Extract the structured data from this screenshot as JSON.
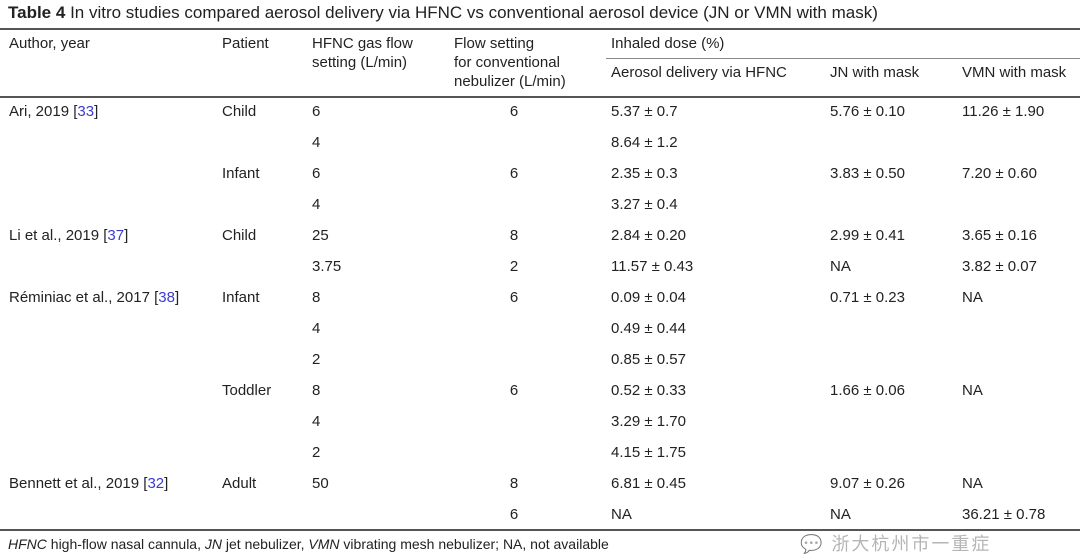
{
  "table": {
    "label": "Table 4",
    "caption": "In vitro studies compared aerosol delivery via HFNC vs conventional aerosol device (JN or VMN with mask)",
    "headers": {
      "author": "Author, year",
      "patient": "Patient",
      "hfnc_flow": [
        "HFNC gas flow",
        "setting (L/min)"
      ],
      "conv_flow": [
        "Flow setting",
        "for conventional",
        "nebulizer (L/min)"
      ],
      "inhaled_dose": "Inhaled dose (%)",
      "sub": [
        "Aerosol delivery via HFNC",
        "JN with mask",
        "VMN with mask"
      ]
    },
    "rows": [
      {
        "author": "Ari, 2019",
        "ref": "33",
        "patient": "Child",
        "hfnc": "6",
        "conv": "6",
        "via_hfnc": "5.37 ± 0.7",
        "jn": "5.76 ± 0.10",
        "vmn": "11.26 ± 1.90"
      },
      {
        "author": "",
        "ref": "",
        "patient": "",
        "hfnc": "4",
        "conv": "",
        "via_hfnc": "8.64 ± 1.2",
        "jn": "",
        "vmn": ""
      },
      {
        "author": "",
        "ref": "",
        "patient": "Infant",
        "hfnc": "6",
        "conv": "6",
        "via_hfnc": "2.35 ± 0.3",
        "jn": "3.83 ± 0.50",
        "vmn": "7.20 ± 0.60"
      },
      {
        "author": "",
        "ref": "",
        "patient": "",
        "hfnc": "4",
        "conv": "",
        "via_hfnc": "3.27 ± 0.4",
        "jn": "",
        "vmn": ""
      },
      {
        "author": "Li et al., 2019",
        "ref": "37",
        "patient": "Child",
        "hfnc": "25",
        "conv": "8",
        "via_hfnc": "2.84 ± 0.20",
        "jn": "2.99 ± 0.41",
        "vmn": "3.65 ± 0.16"
      },
      {
        "author": "",
        "ref": "",
        "patient": "",
        "hfnc": "3.75",
        "conv": "2",
        "via_hfnc": "11.57 ± 0.43",
        "jn": "NA",
        "vmn": "3.82 ± 0.07"
      },
      {
        "author": "Réminiac et al., 2017",
        "ref": "38",
        "patient": "Infant",
        "hfnc": "8",
        "conv": "6",
        "via_hfnc": "0.09 ± 0.04",
        "jn": "0.71 ± 0.23",
        "vmn": "NA"
      },
      {
        "author": "",
        "ref": "",
        "patient": "",
        "hfnc": "4",
        "conv": "",
        "via_hfnc": "0.49 ± 0.44",
        "jn": "",
        "vmn": ""
      },
      {
        "author": "",
        "ref": "",
        "patient": "",
        "hfnc": "2",
        "conv": "",
        "via_hfnc": "0.85 ± 0.57",
        "jn": "",
        "vmn": ""
      },
      {
        "author": "",
        "ref": "",
        "patient": "Toddler",
        "hfnc": "8",
        "conv": "6",
        "via_hfnc": "0.52 ± 0.33",
        "jn": "1.66 ± 0.06",
        "vmn": "NA"
      },
      {
        "author": "",
        "ref": "",
        "patient": "",
        "hfnc": "4",
        "conv": "",
        "via_hfnc": "3.29 ± 1.70",
        "jn": "",
        "vmn": ""
      },
      {
        "author": "",
        "ref": "",
        "patient": "",
        "hfnc": "2",
        "conv": "",
        "via_hfnc": "4.15 ± 1.75",
        "jn": "",
        "vmn": ""
      },
      {
        "author": "Bennett et al., 2019",
        "ref": "32",
        "patient": "Adult",
        "hfnc": "50",
        "conv": "8",
        "via_hfnc": "6.81 ± 0.45",
        "jn": "9.07 ± 0.26",
        "vmn": "NA"
      },
      {
        "author": "",
        "ref": "",
        "patient": "",
        "hfnc": "",
        "conv": "6",
        "via_hfnc": "NA",
        "jn": "NA",
        "vmn": "36.21 ± 0.78"
      }
    ],
    "footnote": [
      {
        "abbr": "HFNC",
        "def": " high-flow nasal cannula, "
      },
      {
        "abbr": "JN",
        "def": " jet nebulizer, "
      },
      {
        "abbr": "VMN",
        "def": " vibrating mesh nebulizer; NA, not available"
      }
    ]
  },
  "watermark": "浙大杭州市一重症"
}
